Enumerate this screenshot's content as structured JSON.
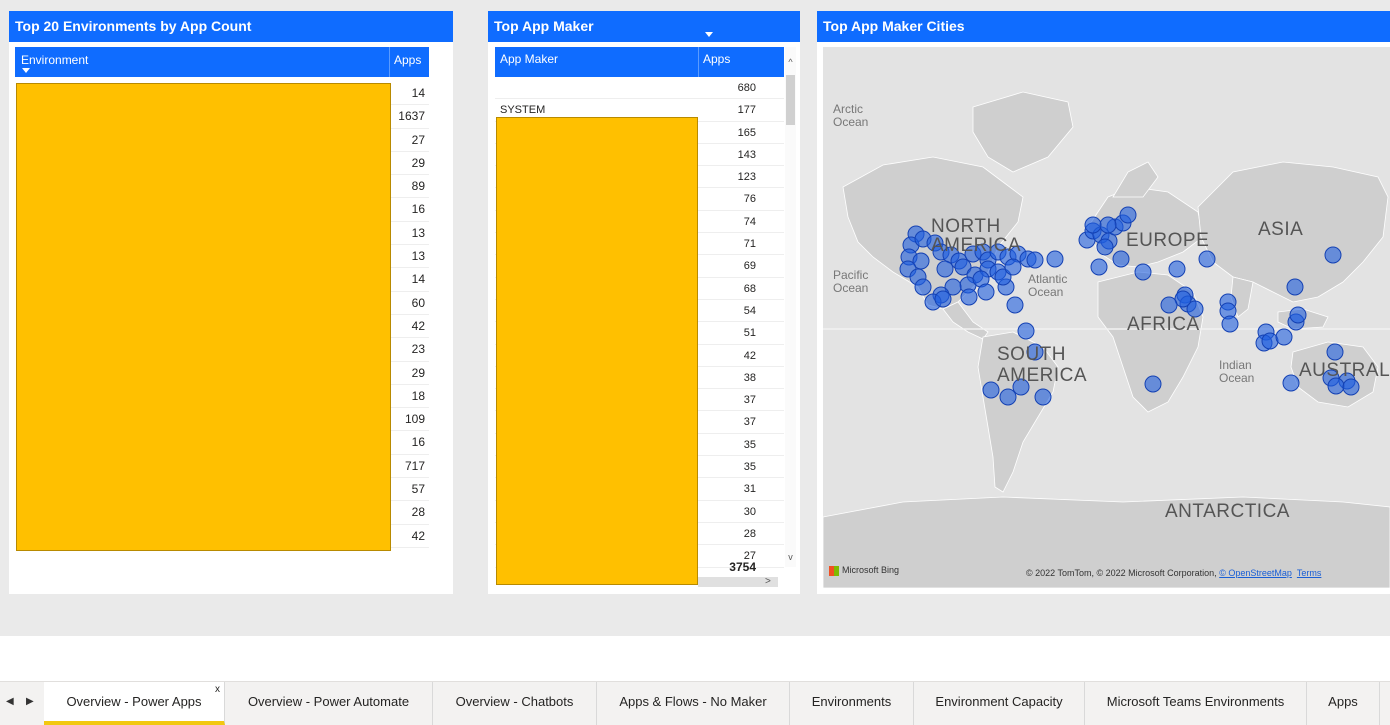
{
  "panels": {
    "environments": {
      "title": "Top 20 Environments by App Count",
      "col_environment": "Environment",
      "col_apps": "Apps",
      "apps": [
        "14",
        "1637",
        "27",
        "29",
        "89",
        "16",
        "13",
        "13",
        "14",
        "60",
        "42",
        "23",
        "29",
        "18",
        "109",
        "16",
        "717",
        "57",
        "28",
        "42"
      ]
    },
    "app_maker": {
      "title": "Top App Maker",
      "col_maker": "App Maker",
      "col_apps": "Apps",
      "rows": [
        {
          "maker": "",
          "apps": "680"
        },
        {
          "maker": "SYSTEM",
          "apps": "177"
        },
        {
          "maker": "",
          "apps": "165"
        },
        {
          "maker": "",
          "apps": "143"
        },
        {
          "maker": "",
          "apps": "123"
        },
        {
          "maker": "",
          "apps": "76"
        },
        {
          "maker": "",
          "apps": "74"
        },
        {
          "maker": "",
          "apps": "71"
        },
        {
          "maker": "",
          "apps": "69"
        },
        {
          "maker": "",
          "apps": "68"
        },
        {
          "maker": "",
          "apps": "54"
        },
        {
          "maker": "",
          "apps": "51"
        },
        {
          "maker": "",
          "apps": "42"
        },
        {
          "maker": "",
          "apps": "38"
        },
        {
          "maker": "",
          "apps": "37"
        },
        {
          "maker": "",
          "apps": "37"
        },
        {
          "maker": "",
          "apps": "35"
        },
        {
          "maker": "",
          "apps": "35"
        },
        {
          "maker": "",
          "apps": "31"
        },
        {
          "maker": "",
          "apps": "30"
        },
        {
          "maker": "",
          "apps": "28"
        },
        {
          "maker": "",
          "apps": "27"
        }
      ],
      "total": "3754"
    },
    "cities": {
      "title": "Top App Maker Cities",
      "labels": {
        "north_america": [
          "NORTH",
          "AMERICA"
        ],
        "south_america": [
          "SOUTH",
          "AMERICA"
        ],
        "europe": "EUROPE",
        "asia": "ASIA",
        "africa": "AFRICA",
        "australia": "AUSTRAL",
        "antarctica": "ANTARCTICA",
        "arctic": [
          "Arctic",
          "Ocean"
        ],
        "pacific": [
          "Pacific",
          "Ocean"
        ],
        "atlantic": [
          "Atlantic",
          "Ocean"
        ],
        "indian": [
          "Indian",
          "Ocean"
        ]
      },
      "bing": "Microsoft Bing",
      "copyright": "© 2022 TomTom, © 2022 Microsoft Corporation,",
      "osm": "© OpenStreetMap",
      "terms": "Terms"
    }
  },
  "tabs": [
    {
      "label": "Overview - Power Apps",
      "active": true,
      "close": "x"
    },
    {
      "label": "Overview - Power Automate"
    },
    {
      "label": "Overview - Chatbots"
    },
    {
      "label": "Apps & Flows - No Maker"
    },
    {
      "label": "Environments"
    },
    {
      "label": "Environment Capacity"
    },
    {
      "label": "Microsoft Teams Environments"
    },
    {
      "label": "Apps"
    }
  ],
  "colors": {
    "header_blue": "#0f6cff",
    "redaction": "#ffc000",
    "bubble": "#1f5fe0",
    "active_tab_underline": "#f2c811"
  }
}
